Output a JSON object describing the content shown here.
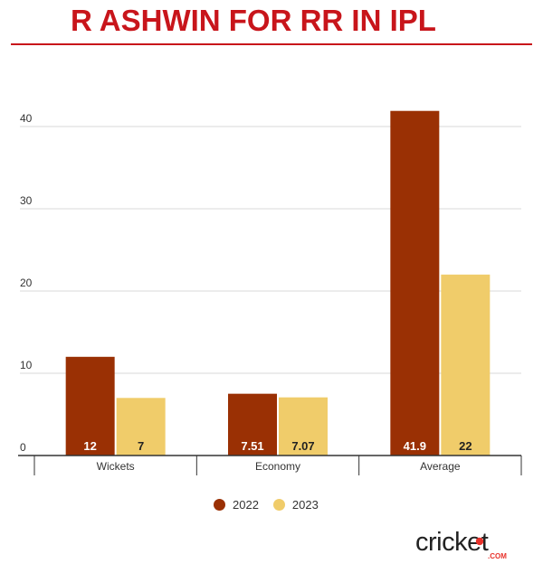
{
  "title": "R ASHWIN FOR RR IN IPL",
  "brand": {
    "logo_text": "cricket",
    "logo_suffix": ".COM",
    "colors": {
      "ink": "#222222",
      "accent": "#e8322b"
    }
  },
  "colors": {
    "title": "#c8151b"
  },
  "chart_data": {
    "type": "bar",
    "categories": [
      "Wickets",
      "Economy",
      "Average"
    ],
    "series": [
      {
        "name": "2022",
        "values": [
          12,
          7.51,
          41.9
        ],
        "labels": [
          "12",
          "7.51",
          "41.9"
        ],
        "color": "#9a3004"
      },
      {
        "name": "2023",
        "values": [
          7,
          7.07,
          22
        ],
        "labels": [
          "7",
          "7.07",
          "22"
        ],
        "color": "#f0cc6a"
      }
    ],
    "ylim": [
      0,
      40
    ],
    "yticks": [
      0,
      10,
      20,
      30,
      40
    ],
    "grid": true,
    "legend": "bottom-center"
  }
}
